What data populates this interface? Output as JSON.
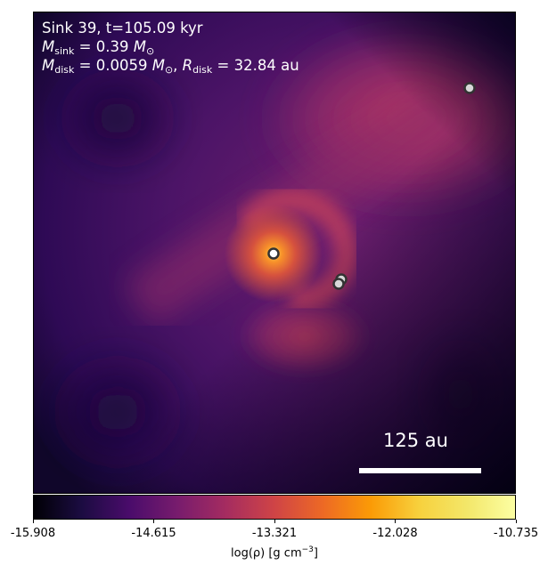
{
  "title_line": "Sink 39, t=105.09 kyr",
  "m_sink": {
    "symbol": "M",
    "sub": "sink",
    "value": "= 0.39",
    "unit_symbol": "M",
    "unit_sub": "⊙"
  },
  "m_disk": {
    "symbol": "M",
    "sub": "disk",
    "value": "= 0.0059",
    "unit_symbol": "M",
    "unit_sub": "⊙"
  },
  "r_disk": {
    "symbol": "R",
    "sub": "disk",
    "value": "= 32.84",
    "unit": "au"
  },
  "scale_bar_label": "125 au",
  "colorbar": {
    "ticks": [
      "-15.908",
      "-14.615",
      "-13.321",
      "-12.028",
      "-10.735"
    ],
    "label": "log(ρ) [g cm",
    "label_exp": "−3",
    "label_end": "]",
    "colormap": "inferno"
  },
  "sinks": [
    {
      "name": "sink-main",
      "ring": "#333333",
      "fill": "#ffffff"
    },
    {
      "name": "sink-companion-a",
      "ring": "#333333",
      "fill": "#d8d8d8"
    },
    {
      "name": "sink-companion-b",
      "ring": "#333333",
      "fill": "#d8d8d8"
    },
    {
      "name": "sink-distant",
      "ring": "#333333",
      "fill": "#d8d8d8"
    }
  ]
}
